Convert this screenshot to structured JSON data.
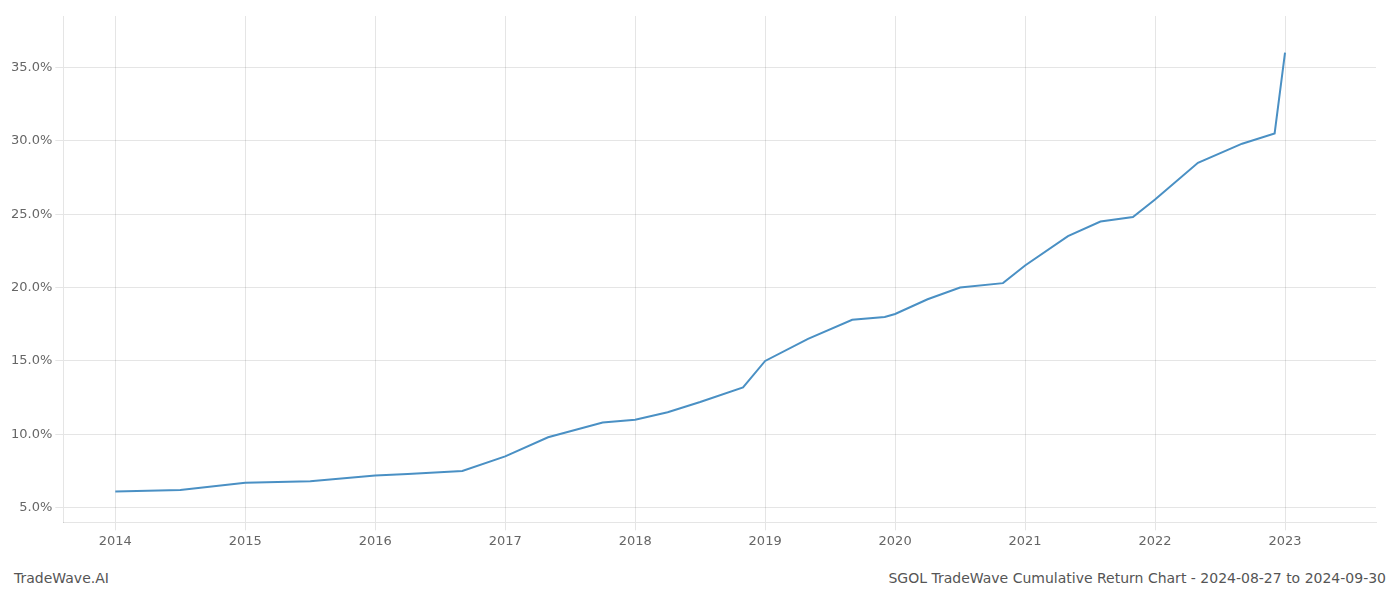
{
  "chart_data": {
    "type": "line",
    "annotations": [
      "TradeWave.AI",
      "SGOL TradeWave Cumulative Return Chart - 2024-08-27 to 2024-09-30"
    ],
    "x": [
      2014.0,
      2014.5,
      2015.0,
      2015.5,
      2016.0,
      2016.25,
      2016.67,
      2017.0,
      2017.33,
      2017.75,
      2018.0,
      2018.25,
      2018.5,
      2018.83,
      2019.0,
      2019.33,
      2019.67,
      2019.92,
      2020.0,
      2020.25,
      2020.5,
      2020.83,
      2021.0,
      2021.33,
      2021.58,
      2021.83,
      2022.0,
      2022.33,
      2022.67,
      2022.92,
      2023.0
    ],
    "values": [
      6.1,
      6.2,
      6.7,
      6.8,
      7.2,
      7.3,
      7.5,
      8.5,
      9.8,
      10.8,
      11.0,
      11.5,
      12.2,
      13.2,
      15.0,
      16.5,
      17.8,
      18.0,
      18.2,
      19.2,
      20.0,
      20.3,
      21.5,
      23.5,
      24.5,
      24.8,
      26.0,
      28.5,
      29.8,
      30.5,
      36.0
    ],
    "color": "#4a90c4",
    "xlim": [
      2013.6,
      2023.7
    ],
    "xticks": [
      2014,
      2015,
      2016,
      2017,
      2018,
      2019,
      2020,
      2021,
      2022,
      2023
    ],
    "ylim": [
      4.0,
      38.5
    ],
    "yticks": [
      {
        "value": 5.0,
        "label": "5.0%"
      },
      {
        "value": 10.0,
        "label": "10.0%"
      },
      {
        "value": 15.0,
        "label": "15.0%"
      },
      {
        "value": 20.0,
        "label": "20.0%"
      },
      {
        "value": 25.0,
        "label": "25.0%"
      },
      {
        "value": 30.0,
        "label": "30.0%"
      },
      {
        "value": 35.0,
        "label": "35.0%"
      }
    ],
    "grid": true
  }
}
